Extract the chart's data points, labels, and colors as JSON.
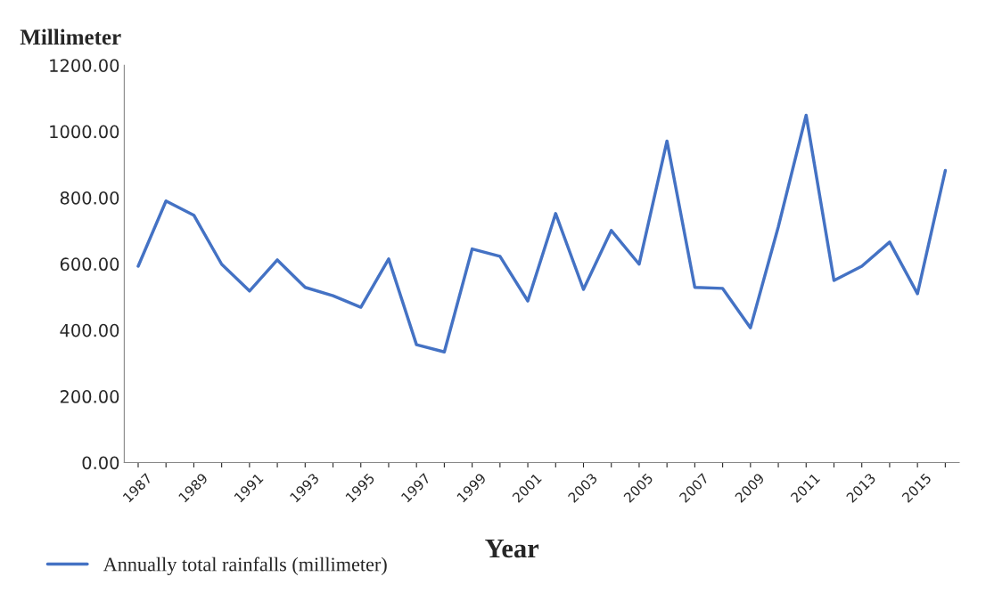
{
  "chart_data": {
    "type": "line",
    "ylabel": "Millimeter",
    "xlabel": "Year",
    "categories": [
      "1987",
      null,
      "1989",
      null,
      "1991",
      null,
      "1993",
      null,
      "1995",
      null,
      "1997",
      null,
      "1999",
      null,
      "2001",
      null,
      "2003",
      null,
      "2005",
      null,
      "2007",
      null,
      "2009",
      null,
      "2011",
      null,
      "2013",
      null,
      "2015",
      null
    ],
    "series": [
      {
        "name": "Annually total rainfalls (millimeter)",
        "color": "#4472c4",
        "values": [
          593,
          790,
          747,
          599,
          518,
          612,
          529,
          504,
          469,
          615,
          356,
          334,
          645,
          623,
          488,
          752,
          523,
          701,
          599,
          971,
          529,
          526,
          407,
          712,
          1049,
          550,
          593,
          666,
          510,
          882
        ]
      }
    ],
    "ylim": [
      0,
      1200
    ],
    "yticks": [
      {
        "value": 0,
        "label": "0.00"
      },
      {
        "value": 200,
        "label": "200.00"
      },
      {
        "value": 400,
        "label": "400.00"
      },
      {
        "value": 600,
        "label": "600.00"
      },
      {
        "value": 800,
        "label": "800.00"
      },
      {
        "value": 1000,
        "label": "1000.00"
      },
      {
        "value": 1200,
        "label": "1200.00"
      }
    ],
    "grid": false,
    "legend": "bottom left",
    "marker": "none",
    "line_style": "solid"
  }
}
